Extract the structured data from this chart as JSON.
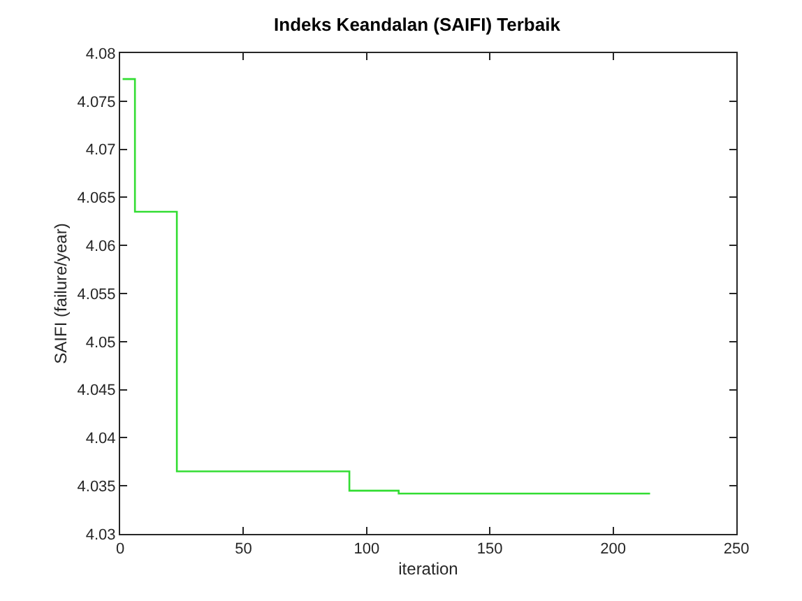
{
  "chart_data": {
    "type": "step",
    "title": "Indeks Keandalan (SAIFI) Terbaik",
    "xlabel": "iteration",
    "ylabel": "SAIFI (failure/year)",
    "x": [
      1,
      6,
      23,
      93,
      113,
      215
    ],
    "series": [
      {
        "color": "#33dd33",
        "values": [
          4.0773,
          4.0635,
          4.0365,
          4.0345,
          4.0342,
          4.0342
        ]
      }
    ],
    "xlim": [
      0,
      250
    ],
    "xticks": [
      0,
      50,
      100,
      150,
      200,
      250
    ],
    "ylim": [
      4.03,
      4.08
    ],
    "yticks": [
      4.03,
      4.035,
      4.04,
      4.045,
      4.05,
      4.055,
      4.06,
      4.065,
      4.07,
      4.075,
      4.08
    ],
    "grid": false,
    "marker": "none",
    "line_style": "solid"
  }
}
